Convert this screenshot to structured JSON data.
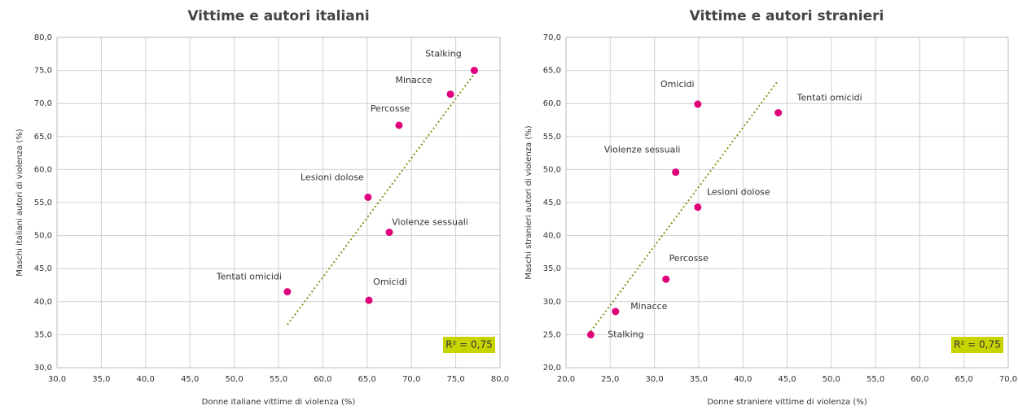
{
  "chart_data": [
    {
      "type": "scatter",
      "title": "Vittime  e autori  italiani",
      "x_label": "Donne italiane vittime di violenza (%)",
      "y_label": "Maschi italiani autori di violenza (%)",
      "labels": [
        "Stalking",
        "Minacce",
        "Percosse",
        "Lesioni dolose",
        "Violenze sessuali",
        "Tentati omicidi",
        "Omicidi"
      ],
      "x": [
        77.1,
        74.4,
        68.6,
        65.1,
        67.5,
        56.0,
        65.2
      ],
      "values": [
        75.0,
        71.4,
        66.7,
        55.8,
        50.5,
        41.5,
        40.2
      ],
      "color": "#e0007a",
      "trendline": {
        "x": [
          56.0,
          77.1
        ],
        "y": [
          36.5,
          74.5
        ],
        "color": "#7a9a1a"
      },
      "annotation": "R² = 0,75",
      "xlim": [
        30,
        80
      ],
      "ylim": [
        30,
        80
      ],
      "xticks": [
        {
          "value": 30,
          "label": "30,0"
        },
        {
          "value": 35,
          "label": "35,0"
        },
        {
          "value": 40,
          "label": "40,0"
        },
        {
          "value": 45,
          "label": "45,0"
        },
        {
          "value": 50,
          "label": "50,0"
        },
        {
          "value": 55,
          "label": "55,0"
        },
        {
          "value": 60,
          "label": "60,0"
        },
        {
          "value": 65,
          "label": "65,0"
        },
        {
          "value": 70,
          "label": "70,0"
        },
        {
          "value": 75,
          "label": "75,0"
        },
        {
          "value": 80,
          "label": "80,0"
        }
      ],
      "yticks": [
        {
          "value": 30,
          "label": "30,0"
        },
        {
          "value": 35,
          "label": "35,0"
        },
        {
          "value": 40,
          "label": "40,0"
        },
        {
          "value": 45,
          "label": "45,0"
        },
        {
          "value": 50,
          "label": "50,0"
        },
        {
          "value": 55,
          "label": "55,0"
        },
        {
          "value": 60,
          "label": "60,0"
        },
        {
          "value": 65,
          "label": "65,0"
        },
        {
          "value": 70,
          "label": "70,0"
        },
        {
          "value": 75,
          "label": "75,0"
        },
        {
          "value": 80,
          "label": "80,0"
        }
      ],
      "grid": true
    },
    {
      "type": "scatter",
      "title": "Vittime  e autori  stranieri",
      "x_label": "Donne straniere vittime di violenza (%)",
      "y_label": "Maschi stranieri autori di violenza (%)",
      "labels": [
        "Stalking",
        "Minacce",
        "Percosse",
        "Lesioni dolose",
        "Violenze sessuali",
        "Omicidi",
        "Tentati omicidi"
      ],
      "x": [
        22.8,
        25.6,
        31.3,
        34.9,
        32.4,
        34.9,
        44.0
      ],
      "values": [
        25.0,
        28.5,
        33.4,
        44.3,
        49.6,
        59.9,
        58.6
      ],
      "color": "#e0007a",
      "trendline": {
        "x": [
          22.8,
          44.0
        ],
        "y": [
          25.5,
          63.5
        ],
        "color": "#7a9a1a"
      },
      "annotation": "R² = 0,75",
      "xlim": [
        20,
        70
      ],
      "ylim": [
        20,
        70
      ],
      "xticks": [
        {
          "value": 20,
          "label": "20,0"
        },
        {
          "value": 25,
          "label": "25,0"
        },
        {
          "value": 30,
          "label": "30,0"
        },
        {
          "value": 35,
          "label": "35,0"
        },
        {
          "value": 40,
          "label": "40,0"
        },
        {
          "value": 45,
          "label": "45,0"
        },
        {
          "value": 50,
          "label": "50,0"
        },
        {
          "value": 55,
          "label": "55,0"
        },
        {
          "value": 60,
          "label": "60,0"
        },
        {
          "value": 65,
          "label": "65,0"
        },
        {
          "value": 70,
          "label": "70,0"
        }
      ],
      "yticks": [
        {
          "value": 20,
          "label": "20,0"
        },
        {
          "value": 25,
          "label": "25,0"
        },
        {
          "value": 30,
          "label": "30,0"
        },
        {
          "value": 35,
          "label": "35,0"
        },
        {
          "value": 40,
          "label": "40,0"
        },
        {
          "value": 45,
          "label": "45,0"
        },
        {
          "value": 50,
          "label": "50,0"
        },
        {
          "value": 55,
          "label": "55,0"
        },
        {
          "value": 60,
          "label": "60,0"
        },
        {
          "value": 65,
          "label": "65,0"
        },
        {
          "value": 70,
          "label": "70,0"
        }
      ],
      "grid": true
    }
  ]
}
